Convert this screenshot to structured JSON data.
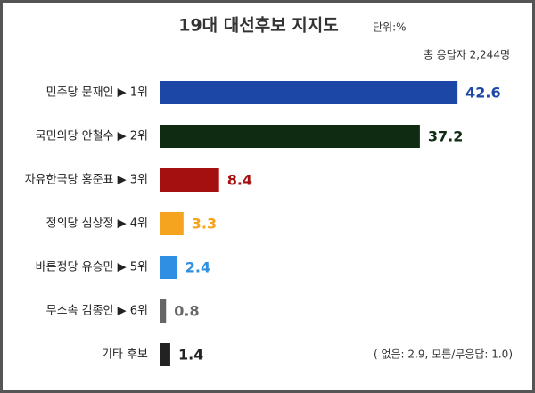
{
  "chart_data": {
    "type": "bar",
    "orientation": "horizontal",
    "title": "19대 대선후보 지지도",
    "unit_note": "단위:%",
    "respondents": "총 응답자 2,244명",
    "categories": [
      "민주당 문재인 ▶ 1위",
      "국민의당 안철수 ▶ 2위",
      "자유한국당 홍준표 ▶ 3위",
      "정의당 심상정 ▶ 4위",
      "바른정당 유승민 ▶ 5위",
      "무소속 김종인 ▶ 6위",
      "기타 후보"
    ],
    "values": [
      42.6,
      37.2,
      8.4,
      3.3,
      2.4,
      0.8,
      1.4
    ],
    "colors": [
      "#1c47a6",
      "#0f2c12",
      "#a3100f",
      "#f5a41f",
      "#2f8fe3",
      "#666666",
      "#222222"
    ],
    "note": "( 없음: 2.9, 모름/무응답: 1.0)"
  }
}
